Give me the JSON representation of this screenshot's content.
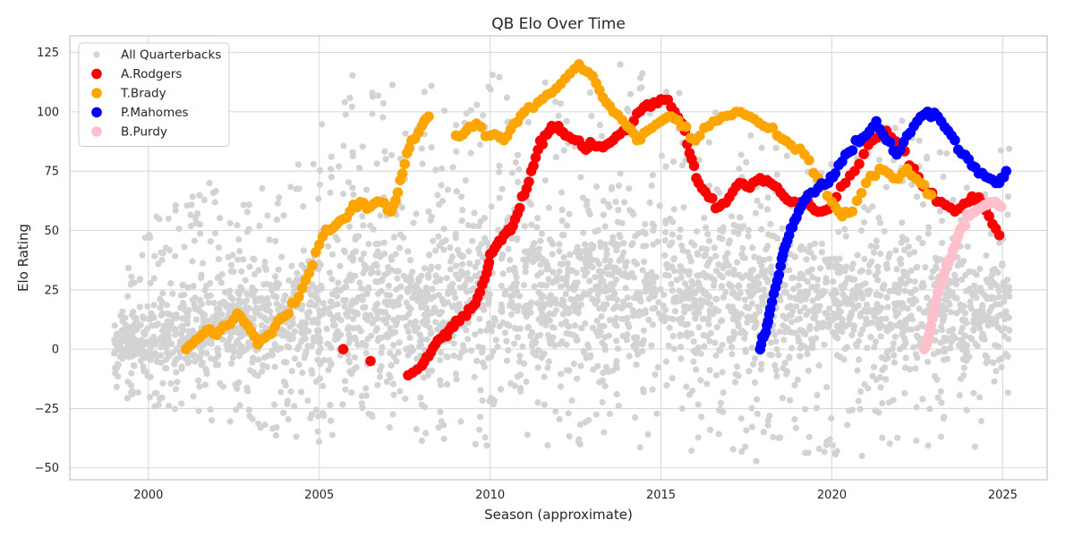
{
  "chart_data": {
    "type": "scatter",
    "title": "QB Elo Over Time",
    "xlabel": "Season (approximate)",
    "ylabel": "Elo Rating",
    "xlim": [
      1997.7,
      2026.3
    ],
    "ylim": [
      -55,
      132
    ],
    "x_ticks": [
      2000,
      2005,
      2010,
      2015,
      2020,
      2025
    ],
    "x_tick_labels": [
      "2000",
      "2005",
      "2010",
      "2015",
      "2020",
      "2025"
    ],
    "y_ticks": [
      -50,
      -25,
      0,
      25,
      50,
      75,
      100,
      125
    ],
    "y_tick_labels": [
      "−50",
      "−25",
      "0",
      "25",
      "50",
      "75",
      "100",
      "125"
    ],
    "grid": true,
    "legend_position": "top-left",
    "background": {
      "name": "All Quarterbacks",
      "color": "#d3d3d3",
      "x_range": [
        1999,
        2025.2
      ],
      "y_band_center": [
        [
          1999,
          2
        ],
        [
          2002,
          10
        ],
        [
          2005,
          15
        ],
        [
          2010,
          22
        ],
        [
          2015,
          25
        ],
        [
          2020,
          20
        ],
        [
          2025,
          15
        ]
      ],
      "y_upper_envelope": [
        [
          1999,
          20
        ],
        [
          2000,
          55
        ],
        [
          2002,
          72
        ],
        [
          2004,
          75
        ],
        [
          2005,
          100
        ],
        [
          2006,
          118
        ],
        [
          2008,
          112
        ],
        [
          2010,
          118
        ],
        [
          2013,
          112
        ],
        [
          2014,
          122
        ],
        [
          2016,
          104
        ],
        [
          2018,
          92
        ],
        [
          2020,
          80
        ],
        [
          2022,
          98
        ],
        [
          2025,
          85
        ]
      ],
      "y_lower_envelope": [
        [
          1999,
          -20
        ],
        [
          2002,
          -32
        ],
        [
          2005,
          -40
        ],
        [
          2010,
          -45
        ],
        [
          2015,
          -42
        ],
        [
          2018,
          -48
        ],
        [
          2020,
          -45
        ],
        [
          2024,
          -47
        ],
        [
          2025,
          -30
        ]
      ]
    },
    "series": [
      {
        "name": "A.Rodgers",
        "color": "#ff0000",
        "points": [
          [
            2005.7,
            0
          ],
          [
            2006.5,
            -5
          ],
          [
            2007.6,
            -11
          ],
          [
            2008.0,
            -7
          ],
          [
            2008.2,
            -3
          ],
          [
            2008.4,
            2
          ],
          [
            2008.6,
            5
          ],
          [
            2008.8,
            8
          ],
          [
            2009.0,
            12
          ],
          [
            2009.3,
            14
          ],
          [
            2009.5,
            18
          ],
          [
            2009.7,
            24
          ],
          [
            2009.9,
            32
          ],
          [
            2010.0,
            40
          ],
          [
            2010.2,
            44
          ],
          [
            2010.4,
            48
          ],
          [
            2010.6,
            50
          ],
          [
            2010.8,
            57
          ],
          [
            2011.0,
            65
          ],
          [
            2011.2,
            75
          ],
          [
            2011.4,
            84
          ],
          [
            2011.6,
            90
          ],
          [
            2011.8,
            94
          ],
          [
            2012.0,
            94
          ],
          [
            2012.2,
            90
          ],
          [
            2012.5,
            88
          ],
          [
            2012.8,
            84
          ],
          [
            2013.0,
            86
          ],
          [
            2013.3,
            85
          ],
          [
            2013.6,
            88
          ],
          [
            2013.9,
            92
          ],
          [
            2014.2,
            96
          ],
          [
            2014.5,
            102
          ],
          [
            2014.8,
            104
          ],
          [
            2015.1,
            105
          ],
          [
            2015.4,
            100
          ],
          [
            2015.7,
            92
          ],
          [
            2015.9,
            80
          ],
          [
            2016.1,
            70
          ],
          [
            2016.4,
            64
          ],
          [
            2016.7,
            60
          ],
          [
            2017.0,
            64
          ],
          [
            2017.3,
            70
          ],
          [
            2017.6,
            68
          ],
          [
            2017.9,
            72
          ],
          [
            2018.2,
            70
          ],
          [
            2018.5,
            66
          ],
          [
            2018.8,
            62
          ],
          [
            2019.1,
            62
          ],
          [
            2019.4,
            60
          ],
          [
            2019.7,
            58
          ],
          [
            2020.0,
            60
          ],
          [
            2020.4,
            70
          ],
          [
            2020.8,
            78
          ],
          [
            2021.2,
            88
          ],
          [
            2021.6,
            92
          ],
          [
            2022.0,
            86
          ],
          [
            2022.4,
            76
          ],
          [
            2022.8,
            66
          ],
          [
            2023.2,
            62
          ],
          [
            2023.6,
            58
          ],
          [
            2024.0,
            62
          ],
          [
            2024.3,
            64
          ],
          [
            2024.6,
            56
          ],
          [
            2024.9,
            48
          ]
        ]
      },
      {
        "name": "T.Brady",
        "color": "#ffa500",
        "points": [
          [
            2001.1,
            0
          ],
          [
            2001.4,
            4
          ],
          [
            2001.7,
            8
          ],
          [
            2002.0,
            6
          ],
          [
            2002.3,
            10
          ],
          [
            2002.6,
            15
          ],
          [
            2002.9,
            10
          ],
          [
            2003.2,
            2
          ],
          [
            2003.5,
            6
          ],
          [
            2003.8,
            12
          ],
          [
            2004.1,
            15
          ],
          [
            2004.4,
            22
          ],
          [
            2004.7,
            32
          ],
          [
            2005.0,
            44
          ],
          [
            2005.3,
            50
          ],
          [
            2005.6,
            54
          ],
          [
            2005.9,
            58
          ],
          [
            2006.2,
            62
          ],
          [
            2006.5,
            60
          ],
          [
            2006.8,
            62
          ],
          [
            2007.1,
            58
          ],
          [
            2007.3,
            66
          ],
          [
            2007.5,
            78
          ],
          [
            2007.7,
            88
          ],
          [
            2008.0,
            94
          ],
          [
            2008.2,
            98
          ],
          [
            2009.0,
            90
          ],
          [
            2009.3,
            92
          ],
          [
            2009.6,
            95
          ],
          [
            2010.0,
            90
          ],
          [
            2010.4,
            88
          ],
          [
            2010.7,
            95
          ],
          [
            2011.0,
            100
          ],
          [
            2011.4,
            104
          ],
          [
            2011.8,
            108
          ],
          [
            2012.2,
            114
          ],
          [
            2012.6,
            120
          ],
          [
            2013.0,
            115
          ],
          [
            2013.3,
            106
          ],
          [
            2013.6,
            100
          ],
          [
            2014.0,
            94
          ],
          [
            2014.3,
            88
          ],
          [
            2014.6,
            92
          ],
          [
            2015.0,
            96
          ],
          [
            2015.3,
            98
          ],
          [
            2015.6,
            94
          ],
          [
            2016.0,
            88
          ],
          [
            2016.4,
            94
          ],
          [
            2016.8,
            98
          ],
          [
            2017.2,
            100
          ],
          [
            2017.6,
            98
          ],
          [
            2018.0,
            94
          ],
          [
            2018.4,
            90
          ],
          [
            2018.8,
            86
          ],
          [
            2019.2,
            82
          ],
          [
            2019.6,
            72
          ],
          [
            2020.0,
            62
          ],
          [
            2020.3,
            56
          ],
          [
            2020.6,
            58
          ],
          [
            2021.0,
            70
          ],
          [
            2021.4,
            76
          ],
          [
            2021.8,
            72
          ],
          [
            2022.2,
            76
          ],
          [
            2022.6,
            70
          ],
          [
            2022.9,
            65
          ]
        ]
      },
      {
        "name": "P.Mahomes",
        "color": "#0000ff",
        "points": [
          [
            2017.9,
            0
          ],
          [
            2018.0,
            5
          ],
          [
            2018.1,
            10
          ],
          [
            2018.2,
            17
          ],
          [
            2018.35,
            26
          ],
          [
            2018.5,
            35
          ],
          [
            2018.6,
            42
          ],
          [
            2018.75,
            48
          ],
          [
            2018.9,
            54
          ],
          [
            2019.1,
            60
          ],
          [
            2019.3,
            65
          ],
          [
            2019.6,
            68
          ],
          [
            2019.9,
            70
          ],
          [
            2020.1,
            74
          ],
          [
            2020.4,
            82
          ],
          [
            2020.7,
            88
          ],
          [
            2021.0,
            90
          ],
          [
            2021.3,
            96
          ],
          [
            2021.6,
            88
          ],
          [
            2021.9,
            82
          ],
          [
            2022.2,
            90
          ],
          [
            2022.5,
            96
          ],
          [
            2022.8,
            100
          ],
          [
            2023.1,
            98
          ],
          [
            2023.4,
            92
          ],
          [
            2023.7,
            84
          ],
          [
            2024.0,
            80
          ],
          [
            2024.3,
            74
          ],
          [
            2024.6,
            72
          ],
          [
            2024.9,
            70
          ],
          [
            2025.1,
            75
          ]
        ]
      },
      {
        "name": "B.Purdy",
        "color": "#ffc0cb",
        "points": [
          [
            2022.7,
            0
          ],
          [
            2022.8,
            4
          ],
          [
            2022.9,
            10
          ],
          [
            2023.0,
            18
          ],
          [
            2023.1,
            24
          ],
          [
            2023.25,
            30
          ],
          [
            2023.4,
            36
          ],
          [
            2023.55,
            42
          ],
          [
            2023.7,
            48
          ],
          [
            2023.85,
            52
          ],
          [
            2024.0,
            56
          ],
          [
            2024.2,
            58
          ],
          [
            2024.4,
            60
          ],
          [
            2024.6,
            62
          ],
          [
            2024.8,
            62
          ],
          [
            2024.95,
            60
          ]
        ]
      }
    ]
  }
}
